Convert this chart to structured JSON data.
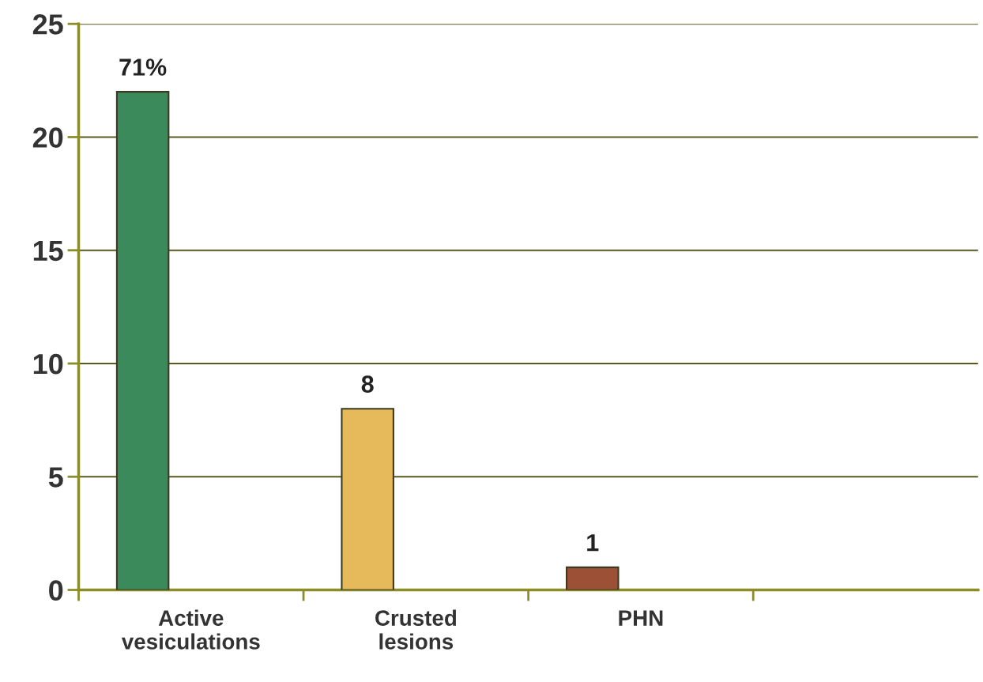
{
  "chart_data": {
    "type": "bar",
    "categories": [
      "Active\nvesiculations",
      "Crusted\nlesions",
      "PHN",
      null
    ],
    "values": [
      22,
      8,
      1,
      null
    ],
    "colors": [
      "#3b8a5c",
      "#e6b95a",
      "#9c5035",
      "#888888"
    ],
    "value_labels": [
      null,
      "8",
      "1",
      null
    ],
    "annotations": [
      "71%"
    ],
    "ylim": [
      0,
      25
    ],
    "yticks": [
      0,
      5,
      10,
      15,
      20,
      25
    ],
    "grid": "y"
  }
}
